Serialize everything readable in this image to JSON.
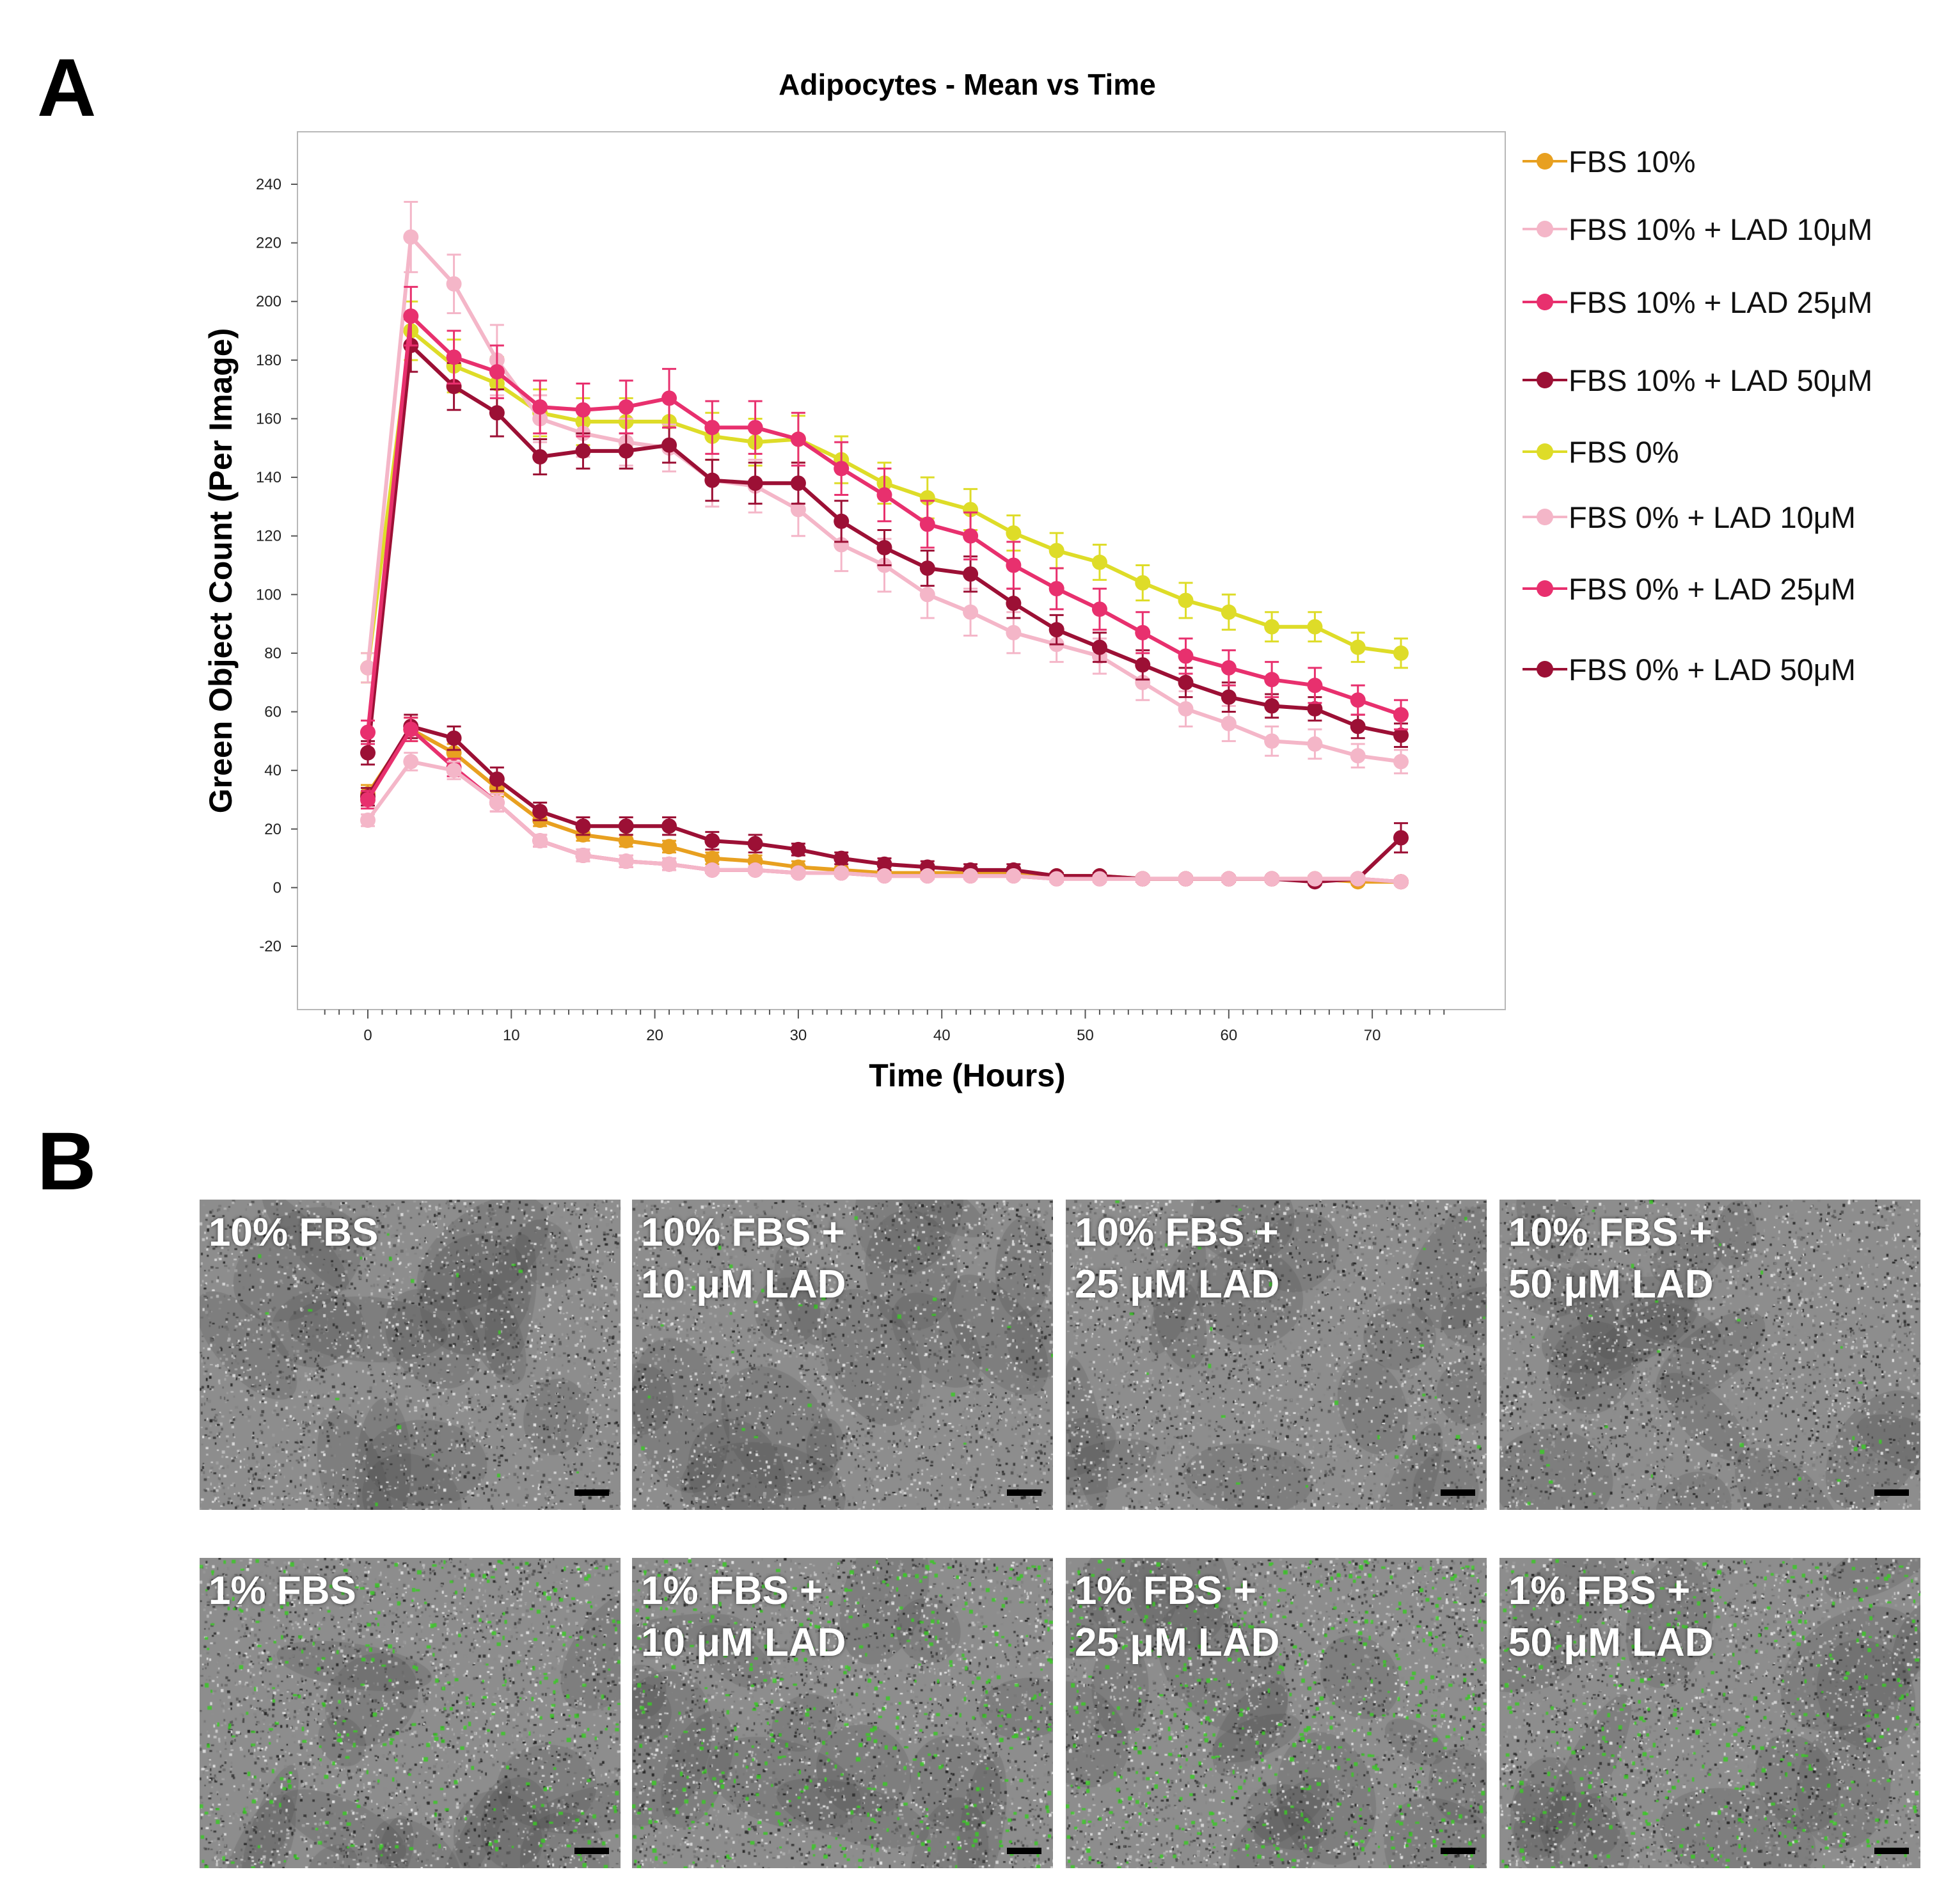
{
  "panels": {
    "a_letter": "A",
    "b_letter": "B"
  },
  "chart_data": {
    "type": "line",
    "title": "Adipocytes - Mean vs Time",
    "xlabel": "Time (Hours)",
    "ylabel": "Green Object Count (Per Image)",
    "xlim": [
      -4,
      77
    ],
    "ylim": [
      -20,
      258
    ],
    "xticks": [
      0,
      10,
      20,
      30,
      40,
      50,
      60,
      70
    ],
    "yticks": [
      -20,
      0,
      20,
      40,
      60,
      80,
      100,
      120,
      140,
      160,
      180,
      200,
      220,
      240
    ],
    "grid": false,
    "legend_position": "right",
    "x": [
      0,
      3,
      6,
      9,
      12,
      15,
      18,
      21,
      24,
      27,
      30,
      33,
      36,
      39,
      42,
      45,
      48,
      51,
      54,
      57,
      60,
      63,
      66,
      69,
      72
    ],
    "series": [
      {
        "name": "FBS 10%",
        "color": "#e8a020",
        "values": [
          32,
          54,
          46,
          34,
          23,
          18,
          16,
          14,
          10,
          9,
          7,
          6,
          5,
          5,
          5,
          5,
          4,
          4,
          3,
          3,
          3,
          3,
          3,
          2,
          2
        ],
        "errors": [
          3,
          4,
          3,
          3,
          2,
          2,
          2,
          2,
          2,
          2,
          2,
          1,
          1,
          1,
          1,
          1,
          1,
          1,
          1,
          1,
          1,
          1,
          1,
          1,
          1
        ]
      },
      {
        "name": "FBS 10% + LAD 10μM",
        "color": "#f4b6c8",
        "values": [
          23,
          43,
          40,
          29,
          16,
          11,
          9,
          8,
          6,
          6,
          5,
          5,
          4,
          4,
          4,
          4,
          3,
          3,
          3,
          3,
          3,
          3,
          3,
          3,
          2
        ],
        "errors": [
          2,
          3,
          3,
          3,
          2,
          2,
          2,
          2,
          1,
          1,
          1,
          1,
          1,
          1,
          1,
          1,
          1,
          1,
          1,
          1,
          1,
          1,
          1,
          1,
          1
        ]
      },
      {
        "name": "FBS 10% + LAD 25μM",
        "color": "#e8306e",
        "values": [
          30,
          54,
          41,
          29,
          16,
          11,
          9,
          8,
          6,
          6,
          5,
          5,
          4,
          4,
          4,
          4,
          3,
          3,
          3,
          3,
          3,
          3,
          3,
          3,
          2
        ],
        "errors": [
          3,
          4,
          3,
          3,
          2,
          2,
          2,
          2,
          1,
          1,
          1,
          1,
          1,
          1,
          1,
          1,
          1,
          1,
          1,
          1,
          1,
          1,
          1,
          1,
          1
        ]
      },
      {
        "name": "FBS 10% + LAD 50μM",
        "color": "#9c1035",
        "values": [
          31,
          55,
          51,
          37,
          26,
          21,
          21,
          21,
          16,
          15,
          13,
          10,
          8,
          7,
          6,
          6,
          4,
          4,
          3,
          3,
          3,
          3,
          2,
          3,
          17
        ],
        "errors": [
          3,
          4,
          4,
          4,
          3,
          3,
          3,
          3,
          3,
          3,
          2,
          2,
          2,
          2,
          2,
          2,
          1,
          1,
          1,
          1,
          1,
          1,
          1,
          1,
          5
        ]
      },
      {
        "name": "FBS 0%",
        "color": "#dedc28",
        "values": [
          75,
          190,
          178,
          172,
          162,
          159,
          159,
          159,
          154,
          152,
          153,
          146,
          138,
          133,
          129,
          121,
          115,
          111,
          104,
          98,
          94,
          89,
          89,
          82,
          80
        ],
        "errors": [
          5,
          10,
          9,
          9,
          8,
          8,
          8,
          8,
          8,
          8,
          8,
          8,
          7,
          7,
          7,
          6,
          6,
          6,
          6,
          6,
          6,
          5,
          5,
          5,
          5
        ]
      },
      {
        "name": "FBS 0% + LAD 10μM",
        "color": "#f4b6c8",
        "values": [
          75,
          222,
          206,
          180,
          160,
          155,
          152,
          150,
          139,
          137,
          129,
          117,
          110,
          100,
          94,
          87,
          83,
          79,
          70,
          61,
          56,
          50,
          49,
          45,
          43
        ],
        "errors": [
          5,
          12,
          10,
          12,
          8,
          8,
          8,
          8,
          9,
          9,
          9,
          9,
          9,
          8,
          8,
          7,
          6,
          6,
          6,
          6,
          6,
          5,
          5,
          4,
          4
        ]
      },
      {
        "name": "FBS 0% + LAD 25μM",
        "color": "#e8306e",
        "values": [
          53,
          195,
          181,
          176,
          164,
          163,
          164,
          167,
          157,
          157,
          153,
          143,
          134,
          124,
          120,
          110,
          102,
          95,
          87,
          79,
          75,
          71,
          69,
          64,
          59
        ],
        "errors": [
          4,
          10,
          9,
          9,
          9,
          9,
          9,
          10,
          9,
          9,
          9,
          9,
          9,
          8,
          8,
          8,
          7,
          7,
          7,
          6,
          6,
          6,
          6,
          5,
          5
        ]
      },
      {
        "name": "FBS 0% + LAD 50μM",
        "color": "#9c1035",
        "values": [
          46,
          185,
          171,
          162,
          147,
          149,
          149,
          151,
          139,
          138,
          138,
          125,
          116,
          109,
          107,
          97,
          88,
          82,
          76,
          70,
          65,
          62,
          61,
          55,
          52
        ],
        "errors": [
          4,
          9,
          8,
          8,
          6,
          6,
          6,
          6,
          7,
          7,
          7,
          7,
          6,
          6,
          6,
          5,
          5,
          5,
          5,
          5,
          5,
          4,
          4,
          4,
          4
        ]
      }
    ]
  },
  "micrographs": {
    "tiles": [
      {
        "label": "10% FBS",
        "green": 0.02
      },
      {
        "label": "10% FBS +\n10 μM LAD",
        "green": 0.03
      },
      {
        "label": "10% FBS +\n25 μM LAD",
        "green": 0.03
      },
      {
        "label": "10% FBS +\n50 μM LAD",
        "green": 0.03
      },
      {
        "label": "1% FBS",
        "green": 0.35
      },
      {
        "label": "1% FBS +\n10 μM LAD",
        "green": 0.45
      },
      {
        "label": "1% FBS +\n25 μM LAD",
        "green": 0.5
      },
      {
        "label": "1% FBS +\n50 μM LAD",
        "green": 0.4
      }
    ]
  }
}
